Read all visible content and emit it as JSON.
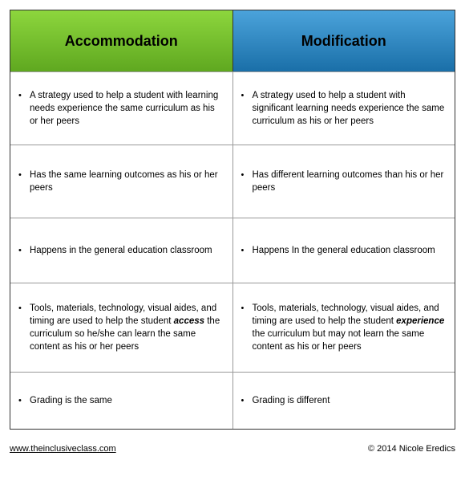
{
  "headers": {
    "accommodation": "Accommodation",
    "modification": "Modification"
  },
  "colors": {
    "accommodation_gradient_top": "#8dd63d",
    "accommodation_gradient_bottom": "#5fa820",
    "modification_gradient_top": "#4ba3db",
    "modification_gradient_bottom": "#1a6fa8",
    "border": "#333333",
    "inner_border": "#999999",
    "background": "#ffffff",
    "text": "#000000"
  },
  "typography": {
    "header_fontsize": 18,
    "header_fontweight": "bold",
    "body_fontsize": 11.5,
    "footer_fontsize": 11,
    "font_family": "Helvetica, Arial, sans-serif"
  },
  "rows": [
    {
      "accommodation_pre": "A strategy used to help a student with learning needs experience the same curriculum as his or her peers",
      "accommodation_emph": "",
      "accommodation_post": "",
      "modification_pre": "A strategy used to help a student with significant learning needs experience the same curriculum as his or her peers",
      "modification_emph": "",
      "modification_post": ""
    },
    {
      "accommodation_pre": "Has the same learning outcomes as his or her peers",
      "accommodation_emph": "",
      "accommodation_post": "",
      "modification_pre": "Has different learning outcomes than his or her peers",
      "modification_emph": "",
      "modification_post": ""
    },
    {
      "accommodation_pre": "Happens in the general education classroom",
      "accommodation_emph": "",
      "accommodation_post": "",
      "modification_pre": "Happens In the general education classroom",
      "modification_emph": "",
      "modification_post": ""
    },
    {
      "accommodation_pre": "Tools, materials, technology, visual aides, and timing are used to help the student ",
      "accommodation_emph": "access",
      "accommodation_post": " the curriculum so he/she can learn the same content as his or her peers",
      "modification_pre": "Tools, materials, technology, visual aides, and timing are used to help the student ",
      "modification_emph": "experience",
      "modification_post": " the curriculum but may not learn the same content as his or her peers"
    },
    {
      "accommodation_pre": "Grading is the same",
      "accommodation_emph": "",
      "accommodation_post": "",
      "modification_pre": "Grading is different",
      "modification_emph": "",
      "modification_post": ""
    }
  ],
  "footer": {
    "link": "www.theinclusiveclass.com",
    "copyright": "© 2014 Nicole Eredics"
  }
}
